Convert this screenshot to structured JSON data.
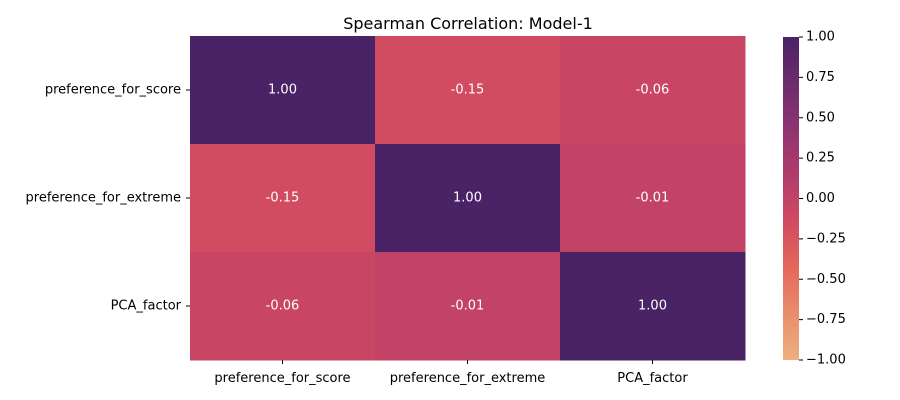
{
  "chart_data": {
    "type": "heatmap",
    "title": "Spearman Correlation: Model-1",
    "x_labels": [
      "preference_for_score",
      "preference_for_extreme",
      "PCA_factor"
    ],
    "y_labels": [
      "preference_for_score",
      "preference_for_extreme",
      "PCA_factor"
    ],
    "matrix": [
      [
        1.0,
        -0.15,
        -0.06
      ],
      [
        -0.15,
        1.0,
        -0.01
      ],
      [
        -0.06,
        -0.01,
        1.0
      ]
    ],
    "cell_labels": [
      [
        "1.00",
        "-0.15",
        "-0.06"
      ],
      [
        "-0.15",
        "1.00",
        "-0.01"
      ],
      [
        "-0.06",
        "-0.01",
        "1.00"
      ]
    ],
    "value_range": [
      -1.0,
      1.0
    ],
    "colormap": "flare",
    "colorbar_ticks": [
      1.0,
      0.75,
      0.5,
      0.25,
      0.0,
      -0.25,
      -0.5,
      -0.75,
      -1.0
    ],
    "colorbar_tick_labels": [
      "1.00",
      "0.75",
      "0.50",
      "0.25",
      "0.00",
      "−0.25",
      "−0.50",
      "−0.75",
      "−1.00"
    ],
    "colorbar_colors": [
      "#edb081",
      "#e98d6b",
      "#e3685c",
      "#d14a61",
      "#b13c6c",
      "#8f3371",
      "#6c2b6d",
      "#4a2366"
    ],
    "grid": false,
    "legend": "colorbar-right"
  }
}
